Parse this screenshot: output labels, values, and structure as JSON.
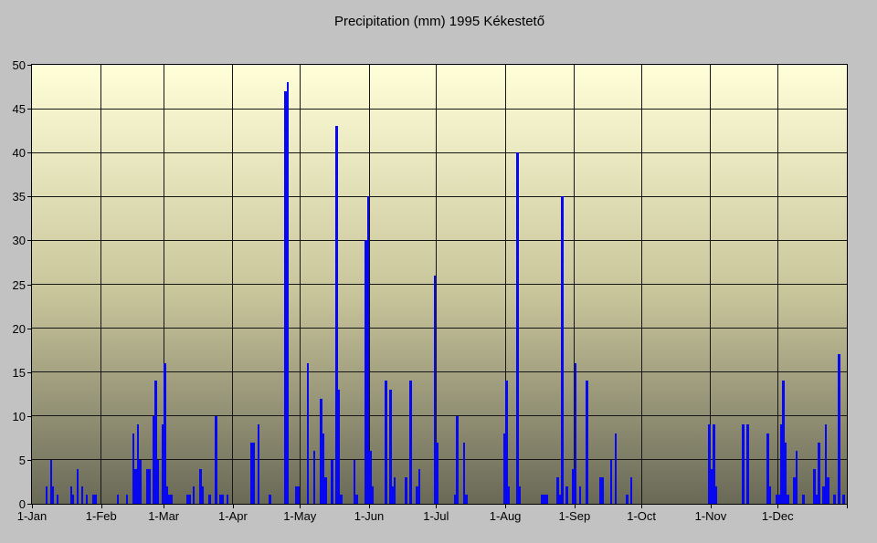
{
  "title": "Precipitation (mm) 1995 Kékestető",
  "colors": {
    "background": "#c2c2c2",
    "bar": "#0808f0",
    "grid": "#161616",
    "text": "#000000",
    "plot_gradient_top": "#ffffd8",
    "plot_gradient_mid": "#c9c59b",
    "plot_gradient_bottom": "#696957"
  },
  "chart_data": {
    "type": "bar",
    "title": "Precipitation (mm) 1995 Kékestető",
    "xlabel": "",
    "ylabel": "",
    "unit": "mm",
    "ylim": [
      0,
      50
    ],
    "grid": true,
    "legend": false,
    "y_ticks": [
      0,
      5,
      10,
      15,
      20,
      25,
      30,
      35,
      40,
      45,
      50
    ],
    "x_tick_labels": [
      "1-Jan",
      "1-Feb",
      "1-Mar",
      "1-Apr",
      "1-May",
      "1-Jun",
      "1-Jul",
      "1-Aug",
      "1-Sep",
      "1-Oct",
      "1-Nov",
      "1-Dec"
    ],
    "points": [
      {
        "date": "Jan 7",
        "mm": 2
      },
      {
        "date": "Jan 9",
        "mm": 5
      },
      {
        "date": "Jan 10",
        "mm": 2
      },
      {
        "date": "Jan 12",
        "mm": 1
      },
      {
        "date": "Jan 18",
        "mm": 2
      },
      {
        "date": "Jan 19",
        "mm": 1
      },
      {
        "date": "Jan 21",
        "mm": 4
      },
      {
        "date": "Jan 23",
        "mm": 2
      },
      {
        "date": "Jan 25",
        "mm": 1
      },
      {
        "date": "Jan 28",
        "mm": 1
      },
      {
        "date": "Jan 29",
        "mm": 1
      },
      {
        "date": "Feb 8",
        "mm": 1
      },
      {
        "date": "Feb 12",
        "mm": 1
      },
      {
        "date": "Feb 15",
        "mm": 8
      },
      {
        "date": "Feb 16",
        "mm": 4
      },
      {
        "date": "Feb 17",
        "mm": 9
      },
      {
        "date": "Feb 18",
        "mm": 5
      },
      {
        "date": "Feb 21",
        "mm": 4
      },
      {
        "date": "Feb 22",
        "mm": 4
      },
      {
        "date": "Feb 24",
        "mm": 10
      },
      {
        "date": "Feb 25",
        "mm": 14
      },
      {
        "date": "Feb 26",
        "mm": 5
      },
      {
        "date": "Feb 28",
        "mm": 9
      },
      {
        "date": "Mar 1",
        "mm": 16
      },
      {
        "date": "Mar 2",
        "mm": 2
      },
      {
        "date": "Mar 3",
        "mm": 1
      },
      {
        "date": "Mar 4",
        "mm": 1
      },
      {
        "date": "Mar 11",
        "mm": 1
      },
      {
        "date": "Mar 12",
        "mm": 1
      },
      {
        "date": "Mar 14",
        "mm": 2
      },
      {
        "date": "Mar 17",
        "mm": 4
      },
      {
        "date": "Mar 18",
        "mm": 2
      },
      {
        "date": "Mar 21",
        "mm": 1
      },
      {
        "date": "Mar 24",
        "mm": 10
      },
      {
        "date": "Mar 26",
        "mm": 1
      },
      {
        "date": "Mar 27",
        "mm": 1
      },
      {
        "date": "Mar 29",
        "mm": 1
      },
      {
        "date": "Apr 9",
        "mm": 7
      },
      {
        "date": "Apr 10",
        "mm": 7
      },
      {
        "date": "Apr 12",
        "mm": 9
      },
      {
        "date": "Apr 17",
        "mm": 1
      },
      {
        "date": "Apr 24",
        "mm": 47
      },
      {
        "date": "Apr 25",
        "mm": 48
      },
      {
        "date": "Apr 29",
        "mm": 2
      },
      {
        "date": "Apr 30",
        "mm": 2
      },
      {
        "date": "May 4",
        "mm": 16
      },
      {
        "date": "May 7",
        "mm": 6
      },
      {
        "date": "May 10",
        "mm": 12
      },
      {
        "date": "May 11",
        "mm": 8
      },
      {
        "date": "May 12",
        "mm": 3
      },
      {
        "date": "May 15",
        "mm": 5
      },
      {
        "date": "May 17",
        "mm": 43
      },
      {
        "date": "May 18",
        "mm": 13
      },
      {
        "date": "May 19",
        "mm": 1
      },
      {
        "date": "May 25",
        "mm": 5
      },
      {
        "date": "May 26",
        "mm": 1
      },
      {
        "date": "May 30",
        "mm": 30
      },
      {
        "date": "May 31",
        "mm": 35
      },
      {
        "date": "Jun 1",
        "mm": 6
      },
      {
        "date": "Jun 2",
        "mm": 2
      },
      {
        "date": "Jun 8",
        "mm": 14
      },
      {
        "date": "Jun 10",
        "mm": 13
      },
      {
        "date": "Jun 11",
        "mm": 2
      },
      {
        "date": "Jun 12",
        "mm": 3
      },
      {
        "date": "Jun 17",
        "mm": 3
      },
      {
        "date": "Jun 19",
        "mm": 14
      },
      {
        "date": "Jun 22",
        "mm": 2
      },
      {
        "date": "Jun 23",
        "mm": 4
      },
      {
        "date": "Jun 30",
        "mm": 26
      },
      {
        "date": "Jul 1",
        "mm": 7
      },
      {
        "date": "Jul 9",
        "mm": 1
      },
      {
        "date": "Jul 10",
        "mm": 10
      },
      {
        "date": "Jul 13",
        "mm": 7
      },
      {
        "date": "Jul 14",
        "mm": 1
      },
      {
        "date": "Jul 31",
        "mm": 8
      },
      {
        "date": "Aug 1",
        "mm": 14
      },
      {
        "date": "Aug 2",
        "mm": 2
      },
      {
        "date": "Aug 6",
        "mm": 40
      },
      {
        "date": "Aug 7",
        "mm": 2
      },
      {
        "date": "Aug 17",
        "mm": 1
      },
      {
        "date": "Aug 18",
        "mm": 1
      },
      {
        "date": "Aug 19",
        "mm": 1
      },
      {
        "date": "Aug 24",
        "mm": 3
      },
      {
        "date": "Aug 25",
        "mm": 1
      },
      {
        "date": "Aug 26",
        "mm": 35
      },
      {
        "date": "Aug 28",
        "mm": 2
      },
      {
        "date": "Aug 31",
        "mm": 4
      },
      {
        "date": "Sep 1",
        "mm": 16
      },
      {
        "date": "Sep 3",
        "mm": 2
      },
      {
        "date": "Sep 6",
        "mm": 14
      },
      {
        "date": "Sep 12",
        "mm": 3
      },
      {
        "date": "Sep 13",
        "mm": 3
      },
      {
        "date": "Sep 17",
        "mm": 5
      },
      {
        "date": "Sep 19",
        "mm": 8
      },
      {
        "date": "Sep 24",
        "mm": 1
      },
      {
        "date": "Sep 26",
        "mm": 3
      },
      {
        "date": "Oct 31",
        "mm": 9
      },
      {
        "date": "Nov 1",
        "mm": 4
      },
      {
        "date": "Nov 2",
        "mm": 9
      },
      {
        "date": "Nov 3",
        "mm": 2
      },
      {
        "date": "Nov 15",
        "mm": 9
      },
      {
        "date": "Nov 17",
        "mm": 9
      },
      {
        "date": "Nov 26",
        "mm": 8
      },
      {
        "date": "Nov 27",
        "mm": 2
      },
      {
        "date": "Nov 30",
        "mm": 1
      },
      {
        "date": "Dec 1",
        "mm": 1
      },
      {
        "date": "Dec 2",
        "mm": 9
      },
      {
        "date": "Dec 3",
        "mm": 14
      },
      {
        "date": "Dec 4",
        "mm": 7
      },
      {
        "date": "Dec 5",
        "mm": 1
      },
      {
        "date": "Dec 8",
        "mm": 3
      },
      {
        "date": "Dec 9",
        "mm": 6
      },
      {
        "date": "Dec 12",
        "mm": 1
      },
      {
        "date": "Dec 17",
        "mm": 4
      },
      {
        "date": "Dec 18",
        "mm": 1
      },
      {
        "date": "Dec 19",
        "mm": 7
      },
      {
        "date": "Dec 21",
        "mm": 2
      },
      {
        "date": "Dec 22",
        "mm": 9
      },
      {
        "date": "Dec 23",
        "mm": 3
      },
      {
        "date": "Dec 26",
        "mm": 1
      },
      {
        "date": "Dec 28",
        "mm": 17
      },
      {
        "date": "Dec 30",
        "mm": 1
      }
    ]
  }
}
